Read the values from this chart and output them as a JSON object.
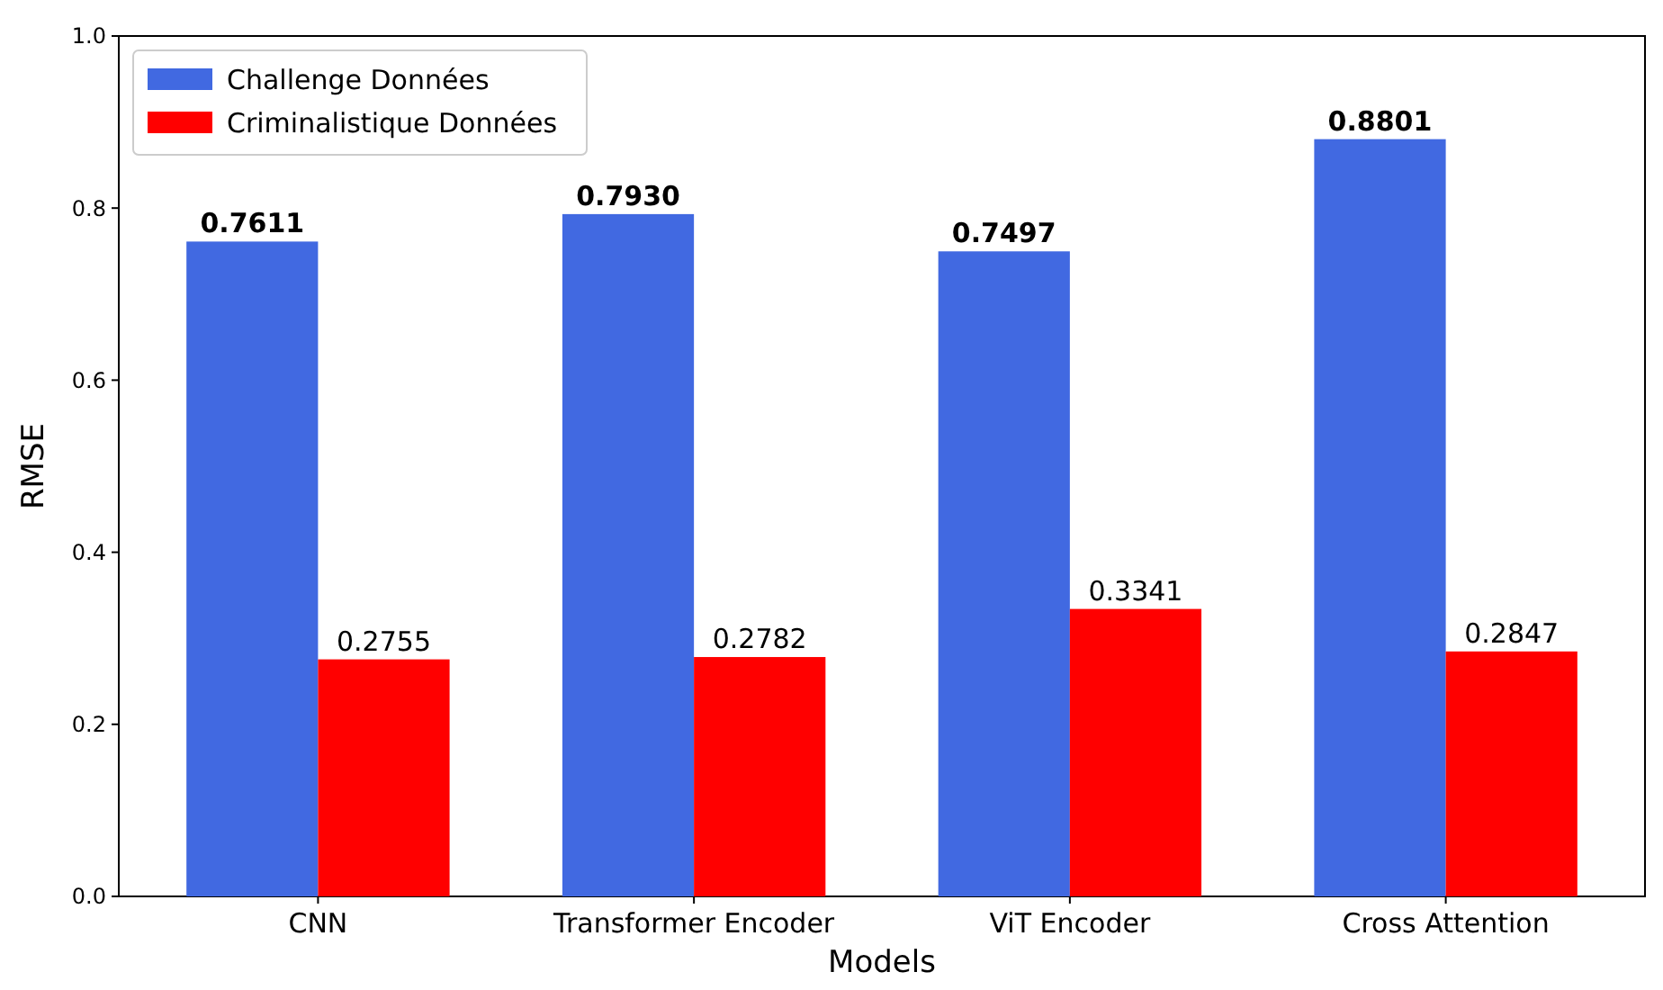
{
  "chart_data": {
    "type": "bar",
    "xlabel": "Models",
    "ylabel": "RMSE",
    "categories": [
      "CNN",
      "Transformer Encoder",
      "ViT Encoder",
      "Cross Attention"
    ],
    "series": [
      {
        "name": "Challenge Données",
        "color": "#4169e1",
        "values": [
          0.7611,
          0.793,
          0.7497,
          0.8801
        ],
        "value_labels": [
          "0.7611",
          "0.7930",
          "0.7497",
          "0.8801"
        ]
      },
      {
        "name": "Criminalistique Données",
        "color": "#ff0000",
        "values": [
          0.2755,
          0.2782,
          0.3341,
          0.2847
        ],
        "value_labels": [
          "0.2755",
          "0.2782",
          "0.3341",
          "0.2847"
        ]
      }
    ],
    "ylim": [
      0,
      1
    ],
    "yticks": [
      {
        "value": 0,
        "label": "0.0"
      },
      {
        "value": 0.2,
        "label": "0.2"
      },
      {
        "value": 0.4,
        "label": "0.4"
      },
      {
        "value": 0.6,
        "label": "0.6"
      },
      {
        "value": 0.8,
        "label": "0.8"
      },
      {
        "value": 1,
        "label": "1.0"
      }
    ],
    "legend": "top left"
  }
}
